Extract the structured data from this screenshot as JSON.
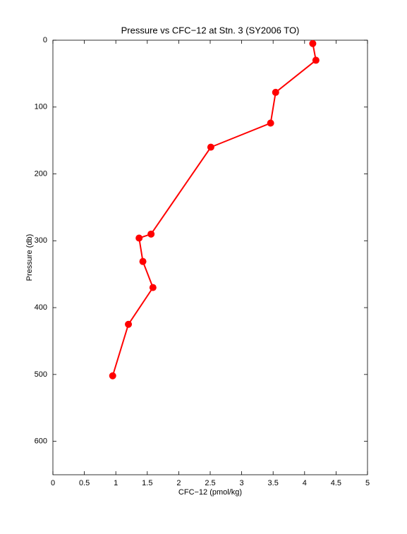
{
  "chart_data": {
    "type": "line",
    "title": "Pressure vs CFC−12 at Stn. 3 (SY2006 TO)",
    "x_label": "CFC−12 (pmol/kg)",
    "y_label": "Pressure (db)",
    "x": [
      4.13,
      4.18,
      3.54,
      3.46,
      2.51,
      1.56,
      1.37,
      1.43,
      1.59,
      1.2,
      0.95
    ],
    "values": [
      5,
      30,
      78,
      124,
      160,
      290,
      296,
      331,
      370,
      425,
      502
    ],
    "color": "#ff0000",
    "xlim": [
      0,
      5
    ],
    "xticks": [
      0,
      0.5,
      1,
      1.5,
      2,
      2.5,
      3,
      3.5,
      4,
      4.5,
      5
    ],
    "ylim": [
      0,
      650
    ],
    "yticks": [
      0,
      100,
      200,
      300,
      400,
      500,
      600
    ],
    "y_reversed": true
  }
}
